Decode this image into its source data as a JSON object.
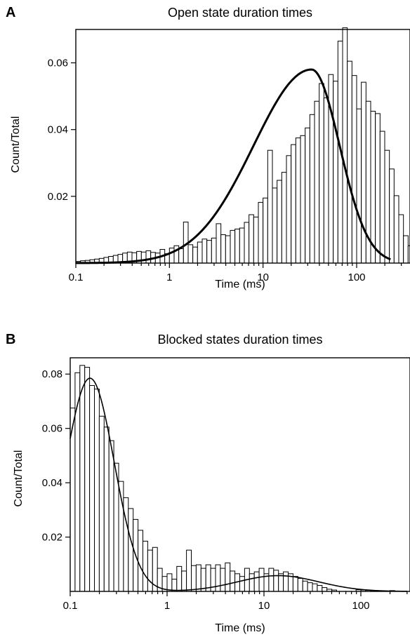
{
  "chart_data": [
    {
      "type": "bar",
      "panel_label": "A",
      "title": "Open state duration times",
      "xlabel": "Time (ms)",
      "ylabel": "Count/Total",
      "xscale": "log",
      "xlim": [
        0.1,
        300
      ],
      "ylim": [
        0,
        0.07
      ],
      "xticks": [
        "0.1",
        "1",
        "10",
        "100"
      ],
      "xtick_values": [
        0.1,
        1,
        10,
        100
      ],
      "yticks": [
        "0.02",
        "0.04",
        "0.06"
      ],
      "ytick_values": [
        0.02,
        0.04,
        0.06
      ],
      "grid": false,
      "bins_per_decade": 20,
      "x_start": 0.1,
      "values": [
        0.0005,
        0.0007,
        0.0008,
        0.001,
        0.0012,
        0.0014,
        0.0017,
        0.002,
        0.0023,
        0.0026,
        0.003,
        0.0033,
        0.0031,
        0.0035,
        0.0033,
        0.0037,
        0.0032,
        0.003,
        0.0041,
        0.0028,
        0.0045,
        0.0052,
        0.0043,
        0.0123,
        0.0055,
        0.0048,
        0.0063,
        0.0072,
        0.0068,
        0.0075,
        0.0118,
        0.0085,
        0.0082,
        0.0098,
        0.0102,
        0.0105,
        0.0122,
        0.0145,
        0.0138,
        0.0182,
        0.0195,
        0.0338,
        0.0225,
        0.0248,
        0.0272,
        0.0322,
        0.0355,
        0.0375,
        0.0382,
        0.0405,
        0.0445,
        0.0485,
        0.0538,
        0.0495,
        0.0565,
        0.0545,
        0.0665,
        0.0705,
        0.0605,
        0.0562,
        0.0462,
        0.0542,
        0.0485,
        0.0455,
        0.0448,
        0.0395,
        0.0338,
        0.0282,
        0.0202,
        0.0145,
        0.0082,
        0.0052,
        0.0035,
        0.0022,
        0.0008
      ],
      "fit": {
        "type": "lognormal",
        "peak_x": 33,
        "peak_y": 0.058,
        "sigma_log10_left": 0.62,
        "sigma_log10_right": 0.3,
        "line": "thick"
      }
    },
    {
      "type": "bar",
      "panel_label": "B",
      "title": "Blocked states duration times",
      "xlabel": "Time (ms)",
      "ylabel": "Count/Total",
      "xscale": "log",
      "xlim": [
        0.1,
        350
      ],
      "ylim": [
        0,
        0.086
      ],
      "xticks": [
        "0.1",
        "1",
        "10",
        "100"
      ],
      "xtick_values": [
        0.1,
        1,
        10,
        100
      ],
      "yticks": [
        "0.02",
        "0.04",
        "0.06",
        "0.08"
      ],
      "ytick_values": [
        0.02,
        0.04,
        0.06,
        0.08
      ],
      "grid": false,
      "bins_per_decade": 20,
      "x_start": 0.1,
      "values": [
        0.0675,
        0.0805,
        0.0832,
        0.0825,
        0.0758,
        0.0745,
        0.0645,
        0.0605,
        0.0555,
        0.0472,
        0.0405,
        0.0345,
        0.0305,
        0.0265,
        0.0225,
        0.0185,
        0.0152,
        0.0162,
        0.0085,
        0.0055,
        0.0065,
        0.0045,
        0.0092,
        0.0075,
        0.0152,
        0.0095,
        0.0098,
        0.0085,
        0.0098,
        0.0085,
        0.0098,
        0.0085,
        0.0105,
        0.0075,
        0.0065,
        0.0055,
        0.0085,
        0.0065,
        0.0072,
        0.0085,
        0.0065,
        0.0085,
        0.0078,
        0.0065,
        0.0072,
        0.0065,
        0.0055,
        0.0048,
        0.0038,
        0.0032,
        0.0028,
        0.0022,
        0.0014,
        0.0008,
        0.0005,
        0,
        0,
        0,
        0,
        0.0006,
        0.0005,
        0.0004,
        0.0003,
        0,
        0,
        0,
        0.0003,
        0,
        0,
        0,
        0,
        0,
        0.0003
      ],
      "fit": {
        "type": "two-lognormal",
        "components": [
          {
            "peak_x": 0.16,
            "peak_y": 0.0785,
            "sigma_log10": 0.25
          },
          {
            "peak_x": 14,
            "peak_y": 0.0058,
            "sigma_log10": 0.42
          }
        ],
        "line": "thin"
      }
    }
  ]
}
